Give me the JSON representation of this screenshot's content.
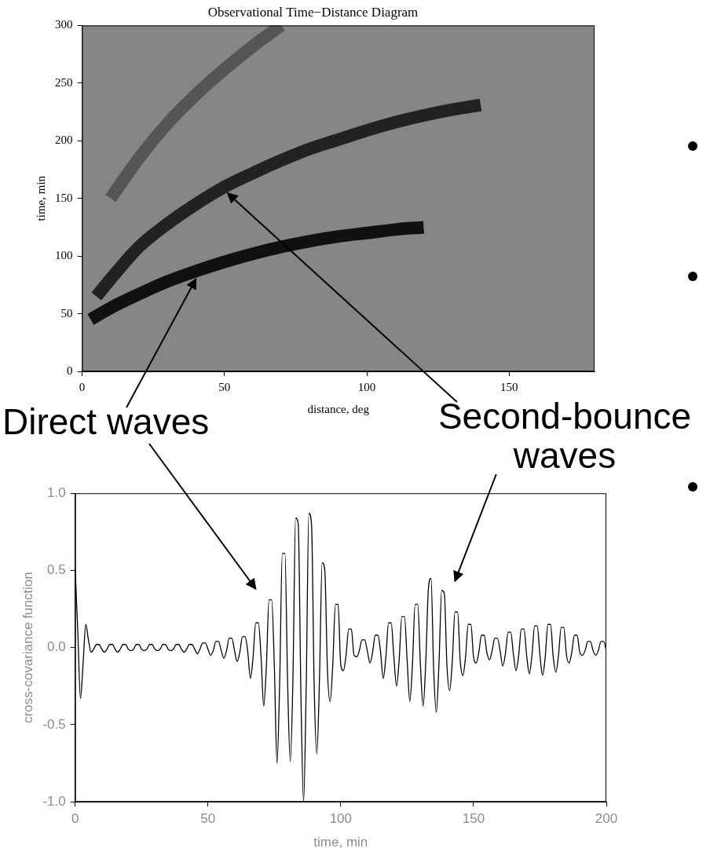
{
  "chart_data": [
    {
      "type": "line",
      "title": "Observational Time−Distance Diagram",
      "x_label": "distance, deg",
      "y_label": "time, min",
      "xlim": [
        0,
        180
      ],
      "xticks": [
        0,
        50,
        100,
        150
      ],
      "ylim": [
        0,
        300
      ],
      "yticks": [
        0,
        50,
        100,
        150,
        200,
        250,
        300
      ],
      "grid": false,
      "series": [
        {
          "color": "#111111",
          "x": [
            3,
            10,
            20,
            30,
            40,
            50,
            60,
            70,
            80,
            90,
            100,
            110,
            120
          ],
          "values": [
            45,
            55,
            67,
            78,
            87,
            95,
            102,
            108,
            113,
            117,
            120,
            123,
            125
          ]
        },
        {
          "color": "#222222",
          "x": [
            5,
            10,
            20,
            30,
            40,
            50,
            60,
            70,
            80,
            90,
            100,
            110,
            120,
            130,
            140
          ],
          "values": [
            65,
            80,
            108,
            128,
            145,
            160,
            172,
            183,
            193,
            201,
            209,
            216,
            222,
            227,
            231
          ]
        },
        {
          "color": "#555555",
          "x": [
            10,
            20,
            30,
            40,
            50,
            60,
            70
          ],
          "values": [
            150,
            185,
            215,
            240,
            262,
            282,
            300
          ]
        }
      ]
    },
    {
      "type": "line",
      "x_label": "time, min",
      "y_label": "cross-covariance function",
      "xlim": [
        0,
        200
      ],
      "xticks": [
        0,
        50,
        100,
        150,
        200
      ],
      "ylim": [
        -1,
        1
      ],
      "yticks": [
        {
          "value": -1,
          "label": "-1.0"
        },
        -0.5,
        {
          "value": 0,
          "label": "0.0"
        },
        0.5,
        {
          "value": 1,
          "label": "1.0"
        }
      ],
      "grid": false,
      "color": "#000000",
      "x": [
        0,
        1,
        2,
        3,
        4,
        5,
        6,
        7,
        8,
        9,
        10,
        11,
        12,
        13,
        14,
        15,
        16,
        17,
        18,
        19,
        20,
        21,
        22,
        23,
        24,
        25,
        26,
        27,
        28,
        29,
        30,
        31,
        32,
        33,
        34,
        35,
        36,
        37,
        38,
        39,
        40,
        41,
        42,
        43,
        44,
        45,
        46,
        47,
        48,
        49,
        50,
        51,
        52,
        53,
        54,
        55,
        56,
        57,
        58,
        59,
        60,
        61,
        62,
        63,
        64,
        65,
        66,
        67,
        68,
        69,
        70,
        71,
        72,
        73,
        74,
        75,
        76,
        77,
        78,
        79,
        80,
        81,
        82,
        83,
        84,
        85,
        86,
        87,
        88,
        89,
        90,
        91,
        92,
        93,
        94,
        95,
        96,
        97,
        98,
        99,
        100,
        101,
        102,
        103,
        104,
        105,
        106,
        107,
        108,
        109,
        110,
        111,
        112,
        113,
        114,
        115,
        116,
        117,
        118,
        119,
        120,
        121,
        122,
        123,
        124,
        125,
        126,
        127,
        128,
        129,
        130,
        131,
        132,
        133,
        134,
        135,
        136,
        137,
        138,
        139,
        140,
        141,
        142,
        143,
        144,
        145,
        146,
        147,
        148,
        149,
        150,
        151,
        152,
        153,
        154,
        155,
        156,
        157,
        158,
        159,
        160,
        161,
        162,
        163,
        164,
        165,
        166,
        167,
        168,
        169,
        170,
        171,
        172,
        173,
        174,
        175,
        176,
        177,
        178,
        179,
        180,
        181,
        182,
        183,
        184,
        185,
        186,
        187,
        188,
        189,
        190,
        191,
        192,
        193,
        194,
        195,
        196,
        197,
        198,
        199,
        200
      ],
      "values": [
        0.52,
        0.1,
        -0.33,
        -0.1,
        0.15,
        0.05,
        -0.03,
        -0.01,
        0.02,
        0.02,
        -0.01,
        -0.03,
        -0.01,
        0.02,
        0.02,
        -0.01,
        -0.03,
        -0.01,
        0.02,
        0.02,
        -0.01,
        -0.02,
        -0.01,
        0.02,
        0.02,
        -0.01,
        -0.02,
        -0.01,
        0.02,
        0.02,
        -0.01,
        -0.02,
        -0.01,
        0.02,
        0.02,
        -0.01,
        -0.02,
        -0.01,
        0.02,
        0.02,
        -0.01,
        -0.03,
        -0.01,
        0.02,
        0.02,
        -0.01,
        -0.04,
        -0.01,
        0.03,
        0.03,
        -0.01,
        -0.05,
        -0.02,
        0.04,
        0.04,
        -0.02,
        -0.07,
        -0.02,
        0.06,
        0.06,
        -0.02,
        -0.09,
        -0.03,
        0.07,
        0.07,
        -0.03,
        -0.2,
        -0.06,
        0.16,
        0.16,
        -0.06,
        -0.38,
        -0.12,
        0.31,
        0.31,
        -0.12,
        -0.75,
        -0.23,
        0.61,
        0.61,
        -0.23,
        -0.74,
        -0.2,
        0.84,
        0.8,
        -0.3,
        -1.0,
        -0.25,
        0.87,
        0.8,
        -0.25,
        -0.69,
        -0.2,
        0.55,
        0.5,
        -0.15,
        -0.35,
        -0.11,
        0.28,
        0.28,
        -0.11,
        -0.15,
        -0.05,
        0.12,
        0.12,
        -0.05,
        -0.06,
        -0.02,
        0.05,
        0.05,
        -0.02,
        -0.1,
        -0.03,
        0.08,
        0.08,
        -0.03,
        -0.2,
        -0.06,
        0.16,
        0.16,
        -0.06,
        -0.25,
        -0.08,
        0.2,
        0.2,
        -0.08,
        -0.35,
        -0.11,
        0.28,
        0.28,
        -0.11,
        -0.38,
        -0.1,
        0.38,
        0.45,
        -0.15,
        -0.42,
        -0.1,
        0.37,
        0.35,
        -0.12,
        -0.28,
        -0.09,
        0.23,
        0.23,
        -0.09,
        -0.18,
        -0.06,
        0.15,
        0.15,
        -0.06,
        -0.1,
        -0.03,
        0.08,
        0.08,
        -0.03,
        -0.08,
        -0.02,
        0.06,
        0.06,
        -0.02,
        -0.12,
        -0.04,
        0.1,
        0.1,
        -0.04,
        -0.15,
        -0.05,
        0.12,
        0.12,
        -0.05,
        -0.17,
        -0.05,
        0.14,
        0.14,
        -0.05,
        -0.18,
        -0.06,
        0.15,
        0.15,
        -0.06,
        -0.16,
        -0.05,
        0.13,
        0.13,
        -0.05,
        -0.1,
        -0.03,
        0.08,
        0.08,
        -0.03,
        -0.05,
        -0.02,
        0.04,
        0.04,
        -0.02,
        -0.05,
        -0.02,
        0.04,
        0.04,
        -0.02
      ]
    }
  ],
  "annotations": [
    "Direct waves",
    "Second-bounce waves"
  ]
}
